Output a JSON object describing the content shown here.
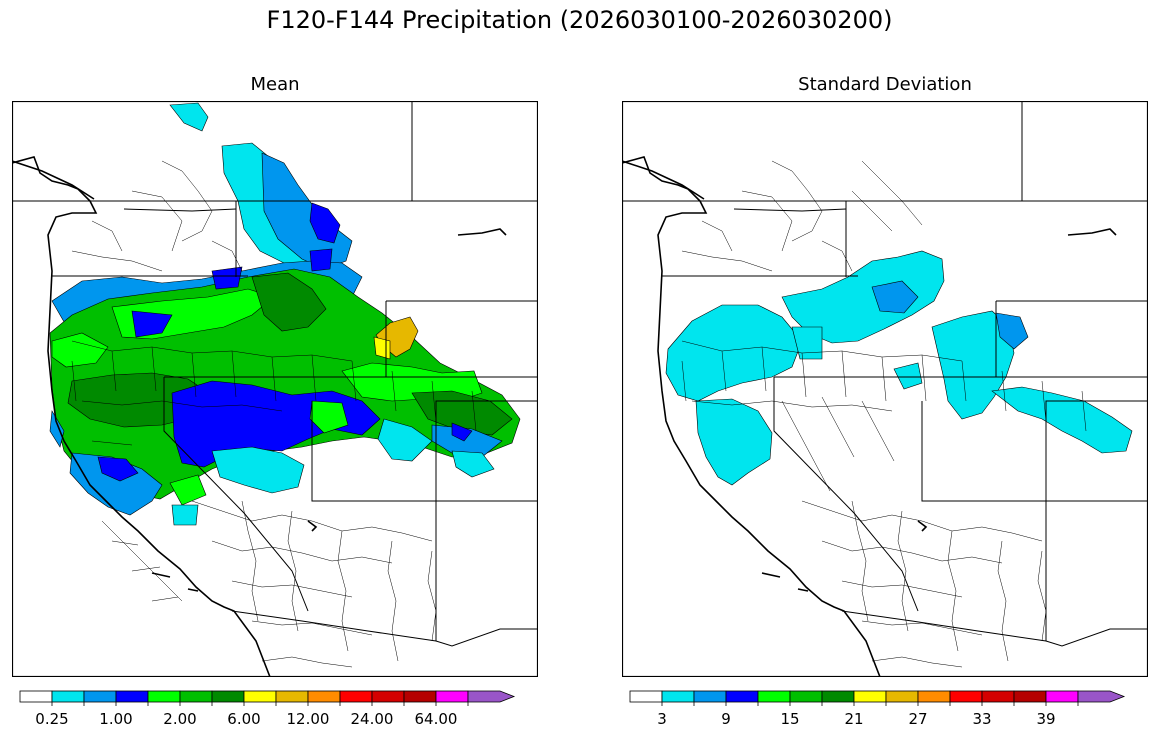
{
  "figure": {
    "title": "F120-F144 Precipitation (2026030100-2026030200)"
  },
  "panels": [
    {
      "title": "Mean",
      "colorbar": {
        "colors": [
          "#ffffff",
          "#00e5ee",
          "#0096ee",
          "#0000ff",
          "#00ff00",
          "#00bf00",
          "#008a00",
          "#ffff00",
          "#e6b800",
          "#ff8c00",
          "#ff0000",
          "#d40000",
          "#b50000",
          "#ff00ff",
          "#9955c8"
        ],
        "tick_labels": [
          "0.25",
          "1.00",
          "2.00",
          "6.00",
          "12.00",
          "24.00",
          "64.00"
        ],
        "extend": "max"
      }
    },
    {
      "title": "Standard Deviation",
      "colorbar": {
        "colors": [
          "#ffffff",
          "#00e5ee",
          "#0096ee",
          "#0000ff",
          "#00ff00",
          "#00bf00",
          "#008a00",
          "#ffff00",
          "#e6b800",
          "#ff8c00",
          "#ff0000",
          "#d40000",
          "#b50000",
          "#ff00ff",
          "#9955c8"
        ],
        "tick_labels": [
          "3",
          "9",
          "15",
          "21",
          "27",
          "33",
          "39"
        ],
        "extend": "max"
      }
    }
  ]
}
